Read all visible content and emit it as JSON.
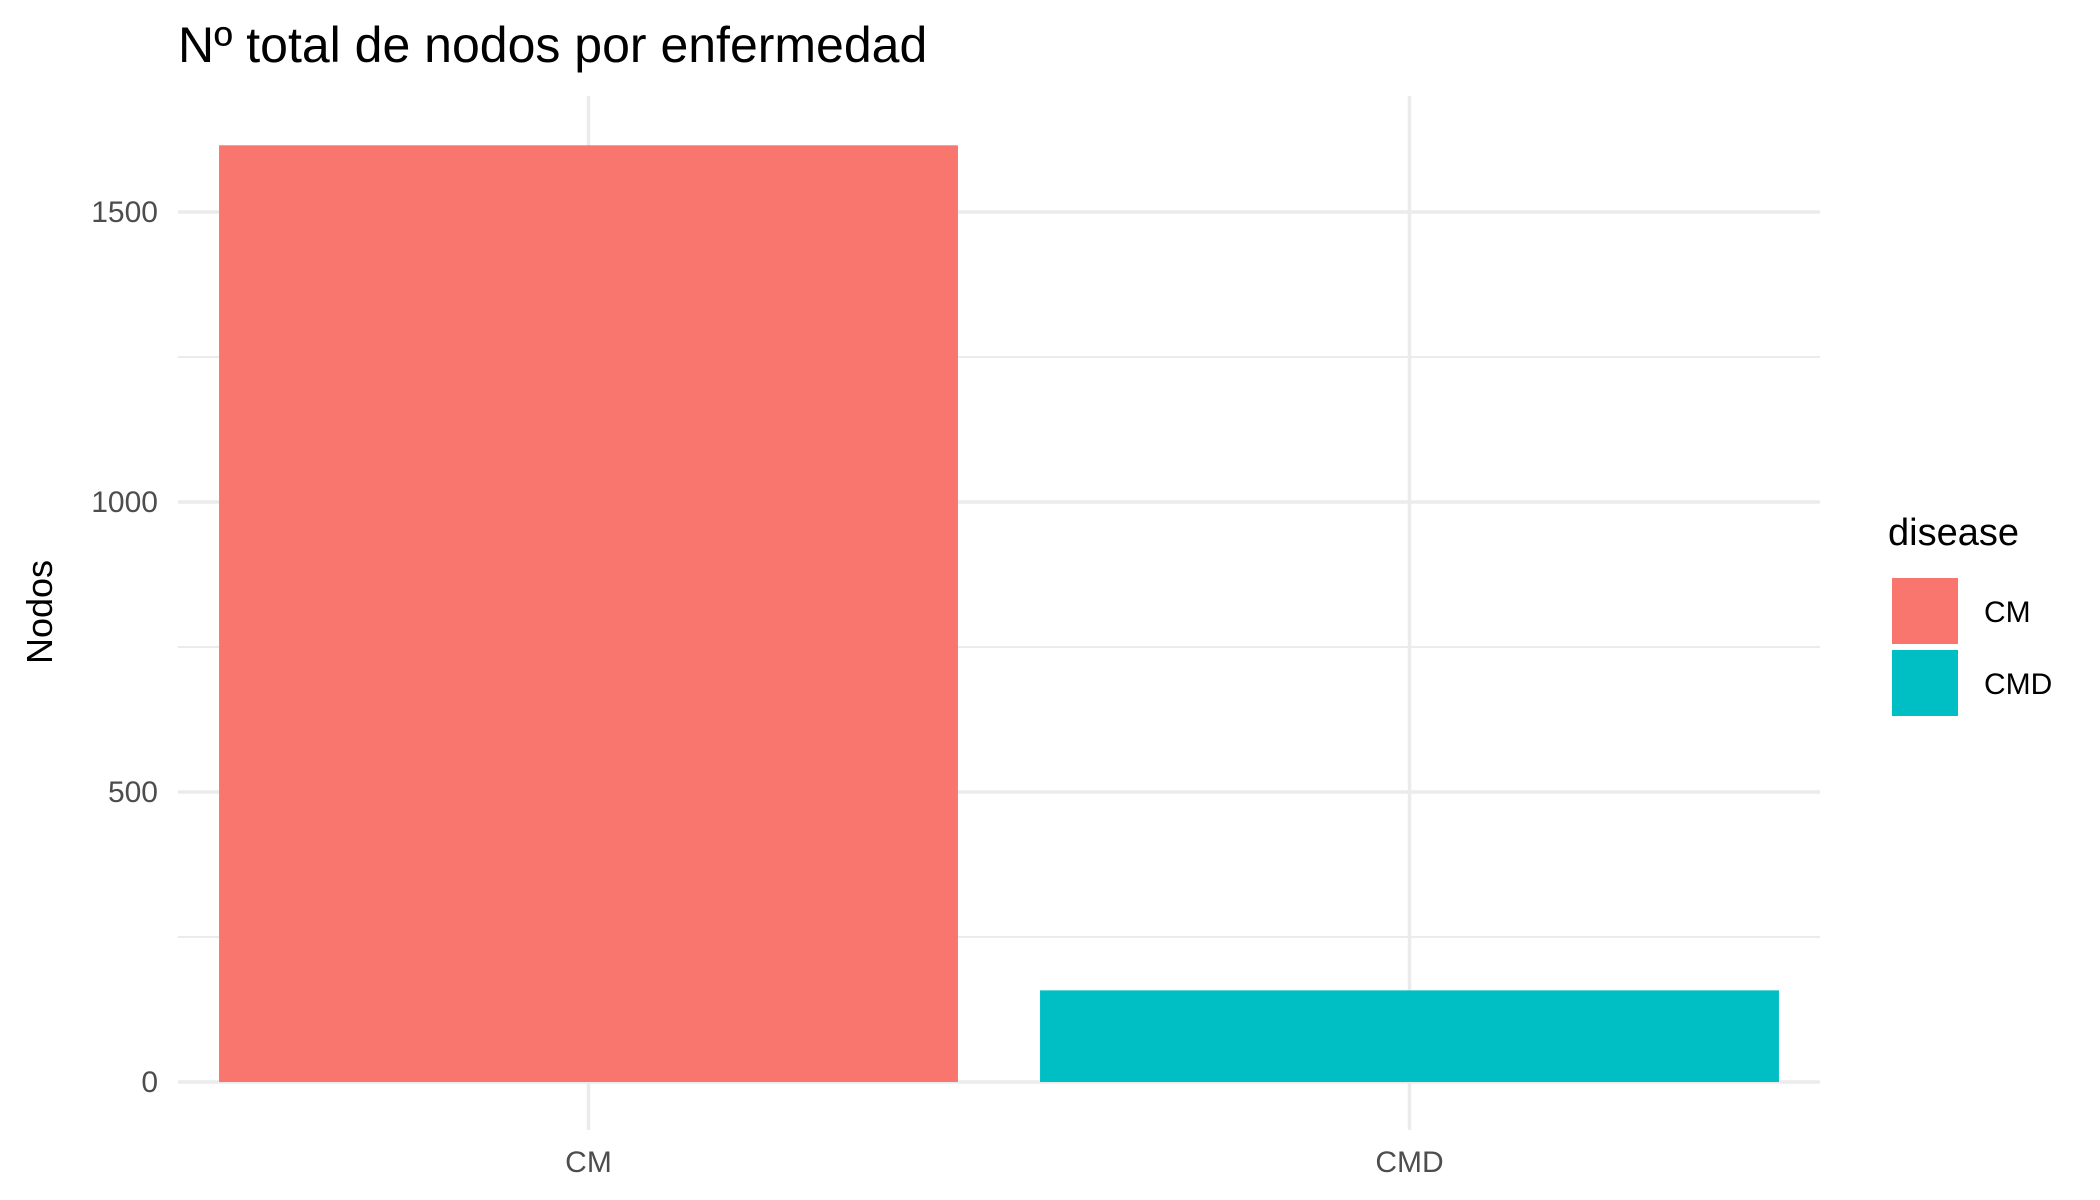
{
  "chart_data": {
    "type": "bar",
    "title": "Nº total de nodos por enfermedad",
    "xlabel": "",
    "ylabel": "Nodos",
    "categories": [
      "CM",
      "CMD"
    ],
    "values": [
      1615,
      158
    ],
    "colors": [
      "#F8766D",
      "#00BFC4"
    ],
    "ylim": [
      0,
      1700
    ],
    "yticks": [
      0,
      500,
      1000,
      1500
    ],
    "grid": true,
    "legend": {
      "title": "disease",
      "position": "right",
      "entries": [
        {
          "label": "CM",
          "color": "#F8766D"
        },
        {
          "label": "CMD",
          "color": "#00BFC4"
        }
      ]
    }
  }
}
